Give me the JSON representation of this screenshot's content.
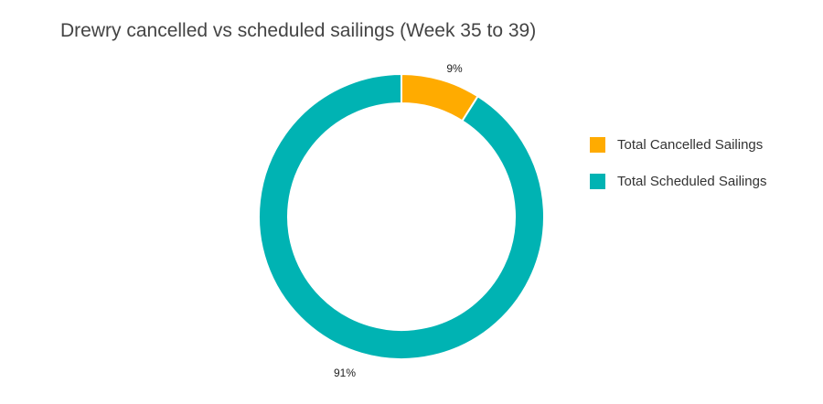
{
  "chart_data": {
    "type": "pie",
    "title": "Drewry cancelled vs scheduled sailings (Week 35 to 39)",
    "donut": true,
    "slices": [
      {
        "name": "Total Cancelled Sailings",
        "value": 9,
        "label": "9%",
        "color": "#FFAB00"
      },
      {
        "name": "Total Scheduled Sailings",
        "value": 91,
        "label": "91%",
        "color": "#00B3B3"
      }
    ],
    "legend_position": "right"
  }
}
